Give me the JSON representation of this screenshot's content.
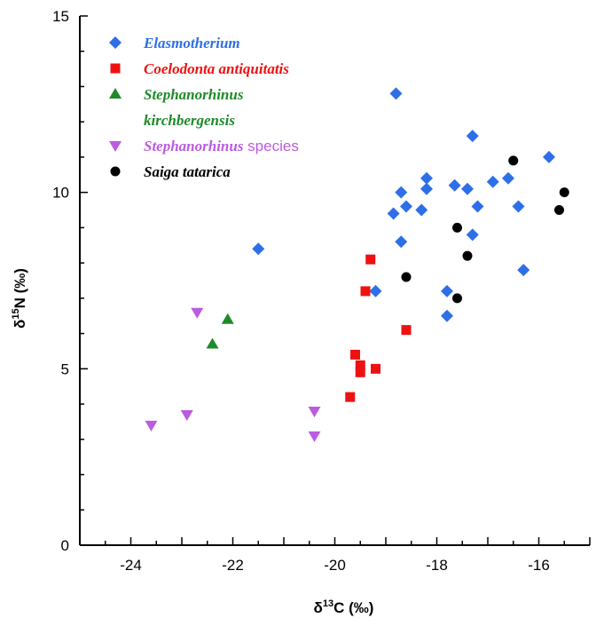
{
  "chart_data": {
    "type": "scatter",
    "xlabel": {
      "prefix": "δ",
      "sup": "13",
      "main": "C (‰)"
    },
    "ylabel": {
      "prefix": "δ",
      "sup": "15",
      "main": "N (‰)"
    },
    "xlim": [
      -25,
      -15
    ],
    "ylim": [
      0,
      15
    ],
    "xticks": [
      -24,
      -22,
      -20,
      -18,
      -16
    ],
    "xtick_labels": [
      "-24",
      "-22",
      "-20",
      "-18",
      "-16"
    ],
    "yticks": [
      0,
      5,
      10,
      15
    ],
    "ytick_labels": [
      "0",
      "5",
      "10",
      "15"
    ],
    "grid": false,
    "legend_position": "top-left",
    "series": [
      {
        "name": "Elasmotherium",
        "name_suffix": "",
        "marker": "diamond",
        "color": "#2e6fe8",
        "points": [
          [
            -21.5,
            8.4
          ],
          [
            -19.2,
            7.2
          ],
          [
            -18.8,
            12.8
          ],
          [
            -18.85,
            9.4
          ],
          [
            -18.7,
            10.0
          ],
          [
            -18.7,
            8.6
          ],
          [
            -18.6,
            9.6
          ],
          [
            -18.3,
            9.5
          ],
          [
            -18.2,
            10.4
          ],
          [
            -18.2,
            10.1
          ],
          [
            -17.8,
            7.2
          ],
          [
            -17.8,
            6.5
          ],
          [
            -17.65,
            10.2
          ],
          [
            -17.4,
            10.1
          ],
          [
            -17.3,
            11.6
          ],
          [
            -17.3,
            8.8
          ],
          [
            -17.2,
            9.6
          ],
          [
            -16.9,
            10.3
          ],
          [
            -16.6,
            10.4
          ],
          [
            -16.4,
            9.6
          ],
          [
            -16.3,
            7.8
          ],
          [
            -15.8,
            11.0
          ]
        ]
      },
      {
        "name": "Coelodonta antiquitatis",
        "name_suffix": "",
        "marker": "square",
        "color": "#ee1111",
        "points": [
          [
            -19.3,
            8.1
          ],
          [
            -19.4,
            7.2
          ],
          [
            -18.6,
            6.1
          ],
          [
            -19.6,
            5.4
          ],
          [
            -19.5,
            5.1
          ],
          [
            -19.5,
            4.9
          ],
          [
            -19.2,
            5.0
          ],
          [
            -19.7,
            4.2
          ]
        ]
      },
      {
        "name": "Stephanorhinus kirchbergensis",
        "name_suffix": "",
        "marker": "triangle-up",
        "color": "#1f8a2a",
        "points": [
          [
            -22.1,
            6.4
          ],
          [
            -22.4,
            5.7
          ]
        ]
      },
      {
        "name": "Stephanorhinus",
        "name_suffix": " species",
        "marker": "triangle-down",
        "color": "#bb5ce0",
        "points": [
          [
            -22.7,
            6.6
          ],
          [
            -22.9,
            3.7
          ],
          [
            -23.6,
            3.4
          ],
          [
            -20.4,
            3.8
          ],
          [
            -20.4,
            3.1
          ]
        ]
      },
      {
        "name": "Saiga tatarica",
        "name_suffix": "",
        "marker": "circle",
        "color": "#000000",
        "points": [
          [
            -16.5,
            10.9
          ],
          [
            -15.5,
            10.0
          ],
          [
            -15.6,
            9.5
          ],
          [
            -17.6,
            9.0
          ],
          [
            -17.4,
            8.2
          ],
          [
            -18.6,
            7.6
          ],
          [
            -17.6,
            7.0
          ]
        ]
      }
    ],
    "legend_entries": [
      {
        "series_index": 0,
        "lines": [
          "Elasmotherium"
        ],
        "suffix": ""
      },
      {
        "series_index": 1,
        "lines": [
          "Coelodonta antiquitatis"
        ],
        "suffix": ""
      },
      {
        "series_index": 2,
        "lines": [
          "Stephanorhinus",
          "kirchbergensis"
        ],
        "suffix": ""
      },
      {
        "series_index": 3,
        "lines": [
          "Stephanorhinus"
        ],
        "suffix": " species"
      },
      {
        "series_index": 4,
        "lines": [
          "Saiga tatarica"
        ],
        "suffix": ""
      }
    ]
  }
}
